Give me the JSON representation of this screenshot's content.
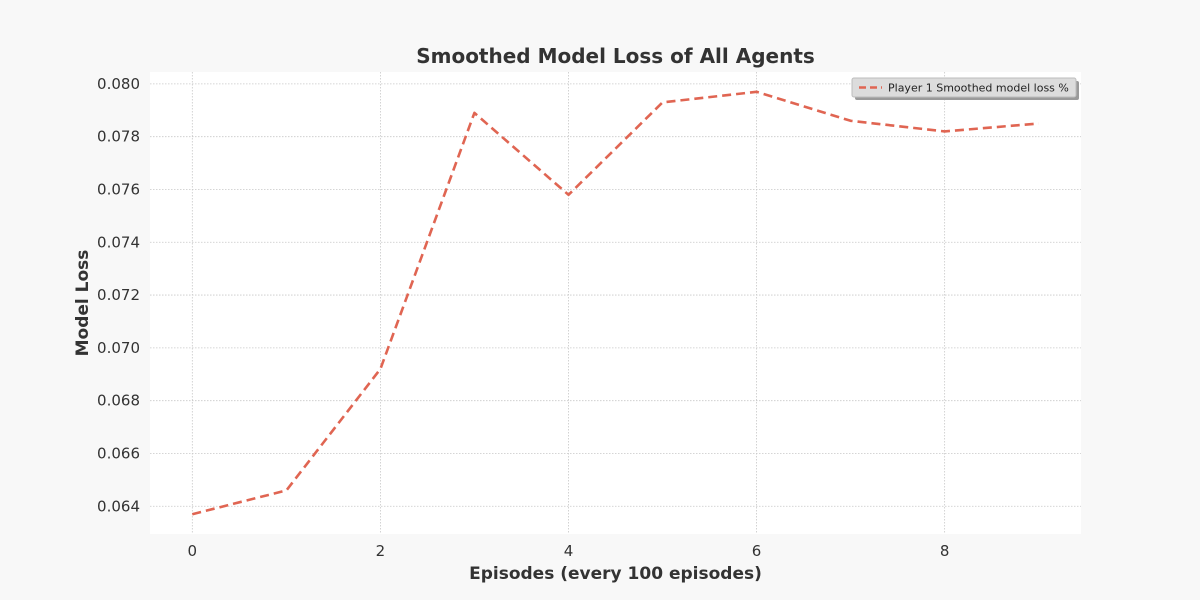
{
  "chart_data": {
    "type": "line",
    "title": "Smoothed Model Loss of All Agents",
    "xlabel": "Episodes (every 100 episodes)",
    "ylabel": "Model Loss",
    "xlim": [
      -0.45,
      9.45
    ],
    "ylim": [
      0.06295,
      0.08045
    ],
    "x_ticks": [
      0,
      2,
      4,
      6,
      8
    ],
    "y_ticks": [
      0.064,
      0.066,
      0.068,
      0.07,
      0.072,
      0.074,
      0.076,
      0.078,
      0.08
    ],
    "y_tick_labels": [
      "0.064",
      "0.066",
      "0.068",
      "0.070",
      "0.072",
      "0.074",
      "0.076",
      "0.078",
      "0.080"
    ],
    "x_tick_labels": [
      "0",
      "2",
      "4",
      "6",
      "8"
    ],
    "grid": true,
    "legend_position": "top-right",
    "series": [
      {
        "name": "Player 1 Smoothed model loss %",
        "color": "#e06552",
        "line_style": "dashed",
        "x": [
          0,
          1,
          2,
          3,
          4,
          5,
          6,
          7,
          8,
          9
        ],
        "y": [
          0.0637,
          0.0646,
          0.0692,
          0.0789,
          0.0758,
          0.0793,
          0.0797,
          0.0786,
          0.0782,
          0.0785
        ]
      }
    ]
  },
  "colors": {
    "figure_background": "#f8f8f8",
    "plot_background": "#ffffff",
    "grid": "#c8c8c8",
    "text": "#333333"
  }
}
